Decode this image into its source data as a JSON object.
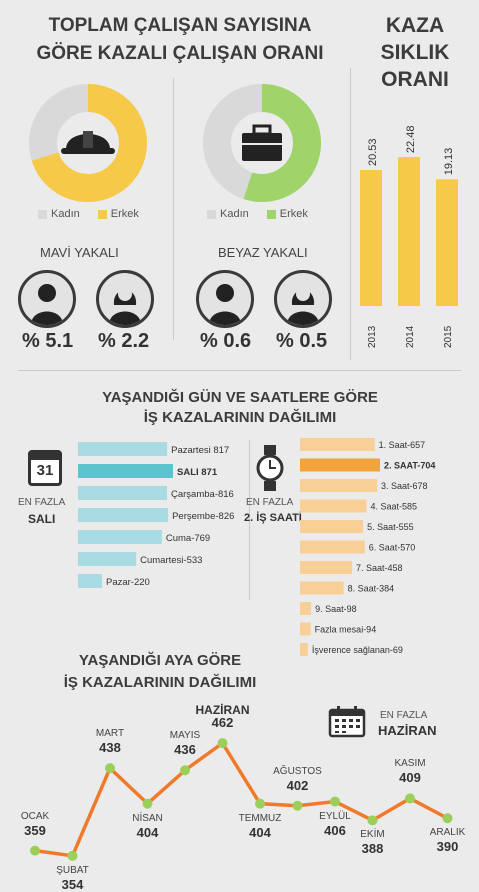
{
  "section1": {
    "title_line1": "TOPLAM ÇALIŞAN SAYISINA",
    "title_line2": "GÖRE KAZALI ÇALIŞAN ORANI",
    "legend_female": "Kadın",
    "legend_male": "Erkek",
    "blue_collar": {
      "label": "MAVİ YAKALI",
      "male_pct": "% 5.1",
      "female_pct": "% 2.2",
      "male_share": 0.7
    },
    "white_collar": {
      "label": "BEYAZ YAKALI",
      "male_pct": "% 0.6",
      "female_pct": "% 0.5",
      "male_share": 0.55
    },
    "colors": {
      "blue_male": "#f7c948",
      "white_male": "#9fd46a",
      "female": "#d9d9d9"
    }
  },
  "kaza": {
    "title_line1": "KAZA",
    "title_line2": "SIKLIK",
    "title_line3": "ORANI",
    "chart_data": {
      "type": "bar",
      "categories": [
        "2013",
        "2014",
        "2015"
      ],
      "values": [
        20.53,
        22.48,
        19.13
      ],
      "value_labels": [
        "20.53",
        "22.48",
        "19.13"
      ],
      "ylim": [
        0,
        25
      ]
    }
  },
  "section2": {
    "title_line1": "YAŞANDIĞI GÜN VE SAATLERE GÖRE",
    "title_line2": "İŞ KAZALARININ DAĞILIMI",
    "calendar_number": "31",
    "day_note_line1": "EN FAZLA",
    "day_note_line2": "SALI",
    "hour_note_line1": "EN FAZLA",
    "hour_note_line2": "2. İŞ SAATİ",
    "days_chart": {
      "type": "bar",
      "categories": [
        "Pazartesi",
        "SALI",
        "Çarşamba",
        "Perşembe",
        "Cuma",
        "Cumartesi",
        "Pazar"
      ],
      "values": [
        817,
        871,
        816,
        826,
        769,
        533,
        220
      ],
      "labels": [
        "Pazartesi 817",
        "SALI 871",
        "Çarşamba-816",
        "Perşembe-826",
        "Cuma-769",
        "Cumartesi-533",
        "Pazar-220"
      ],
      "highlight_index": 1
    },
    "hours_chart": {
      "type": "bar",
      "categories": [
        "1. Saat",
        "2. SAAT",
        "3. Saat",
        "4. Saat",
        "5. Saat",
        "6. Saat",
        "7. Saat",
        "8. Saat",
        "9. Saat",
        "Fazla mesai",
        "İşverence sağlanan"
      ],
      "values": [
        657,
        704,
        678,
        585,
        555,
        570,
        458,
        384,
        98,
        94,
        69
      ],
      "labels": [
        "1. Saat-657",
        "2. SAAT-704",
        "3. Saat-678",
        "4. Saat-585",
        "5. Saat-555",
        "6. Saat-570",
        "7. Saat-458",
        "8. Saat-384",
        "9. Saat-98",
        "Fazla mesai-94",
        "İşverence sağlanan-69"
      ],
      "highlight_index": 1
    },
    "colors": {
      "day": "#a9dbe3",
      "day_highlight": "#5cc3cf",
      "hour": "#f8cf96",
      "hour_highlight": "#f2a43a"
    }
  },
  "section3": {
    "title_line1": "YAŞANDIĞI AYA GÖRE",
    "title_line2": "İŞ KAZALARININ DAĞILIMI",
    "note_line1": "EN FAZLA",
    "note_line2": "HAZİRAN",
    "chart_data": {
      "type": "line",
      "categories": [
        "OCAK",
        "ŞUBAT",
        "MART",
        "NİSAN",
        "MAYIS",
        "HAZİRAN",
        "TEMMUZ",
        "AĞUSTOS",
        "EYLÜL",
        "EKİM",
        "KASIM",
        "ARALIK"
      ],
      "values": [
        359,
        354,
        438,
        404,
        436,
        462,
        404,
        402,
        406,
        388,
        409,
        390
      ],
      "value_labels": [
        "359",
        "354",
        "438",
        "404",
        "436",
        "462",
        "404",
        "402",
        "406",
        "388",
        "409",
        "390"
      ]
    },
    "colors": {
      "line": "#f07a2a",
      "point": "#9ccf5a"
    }
  }
}
